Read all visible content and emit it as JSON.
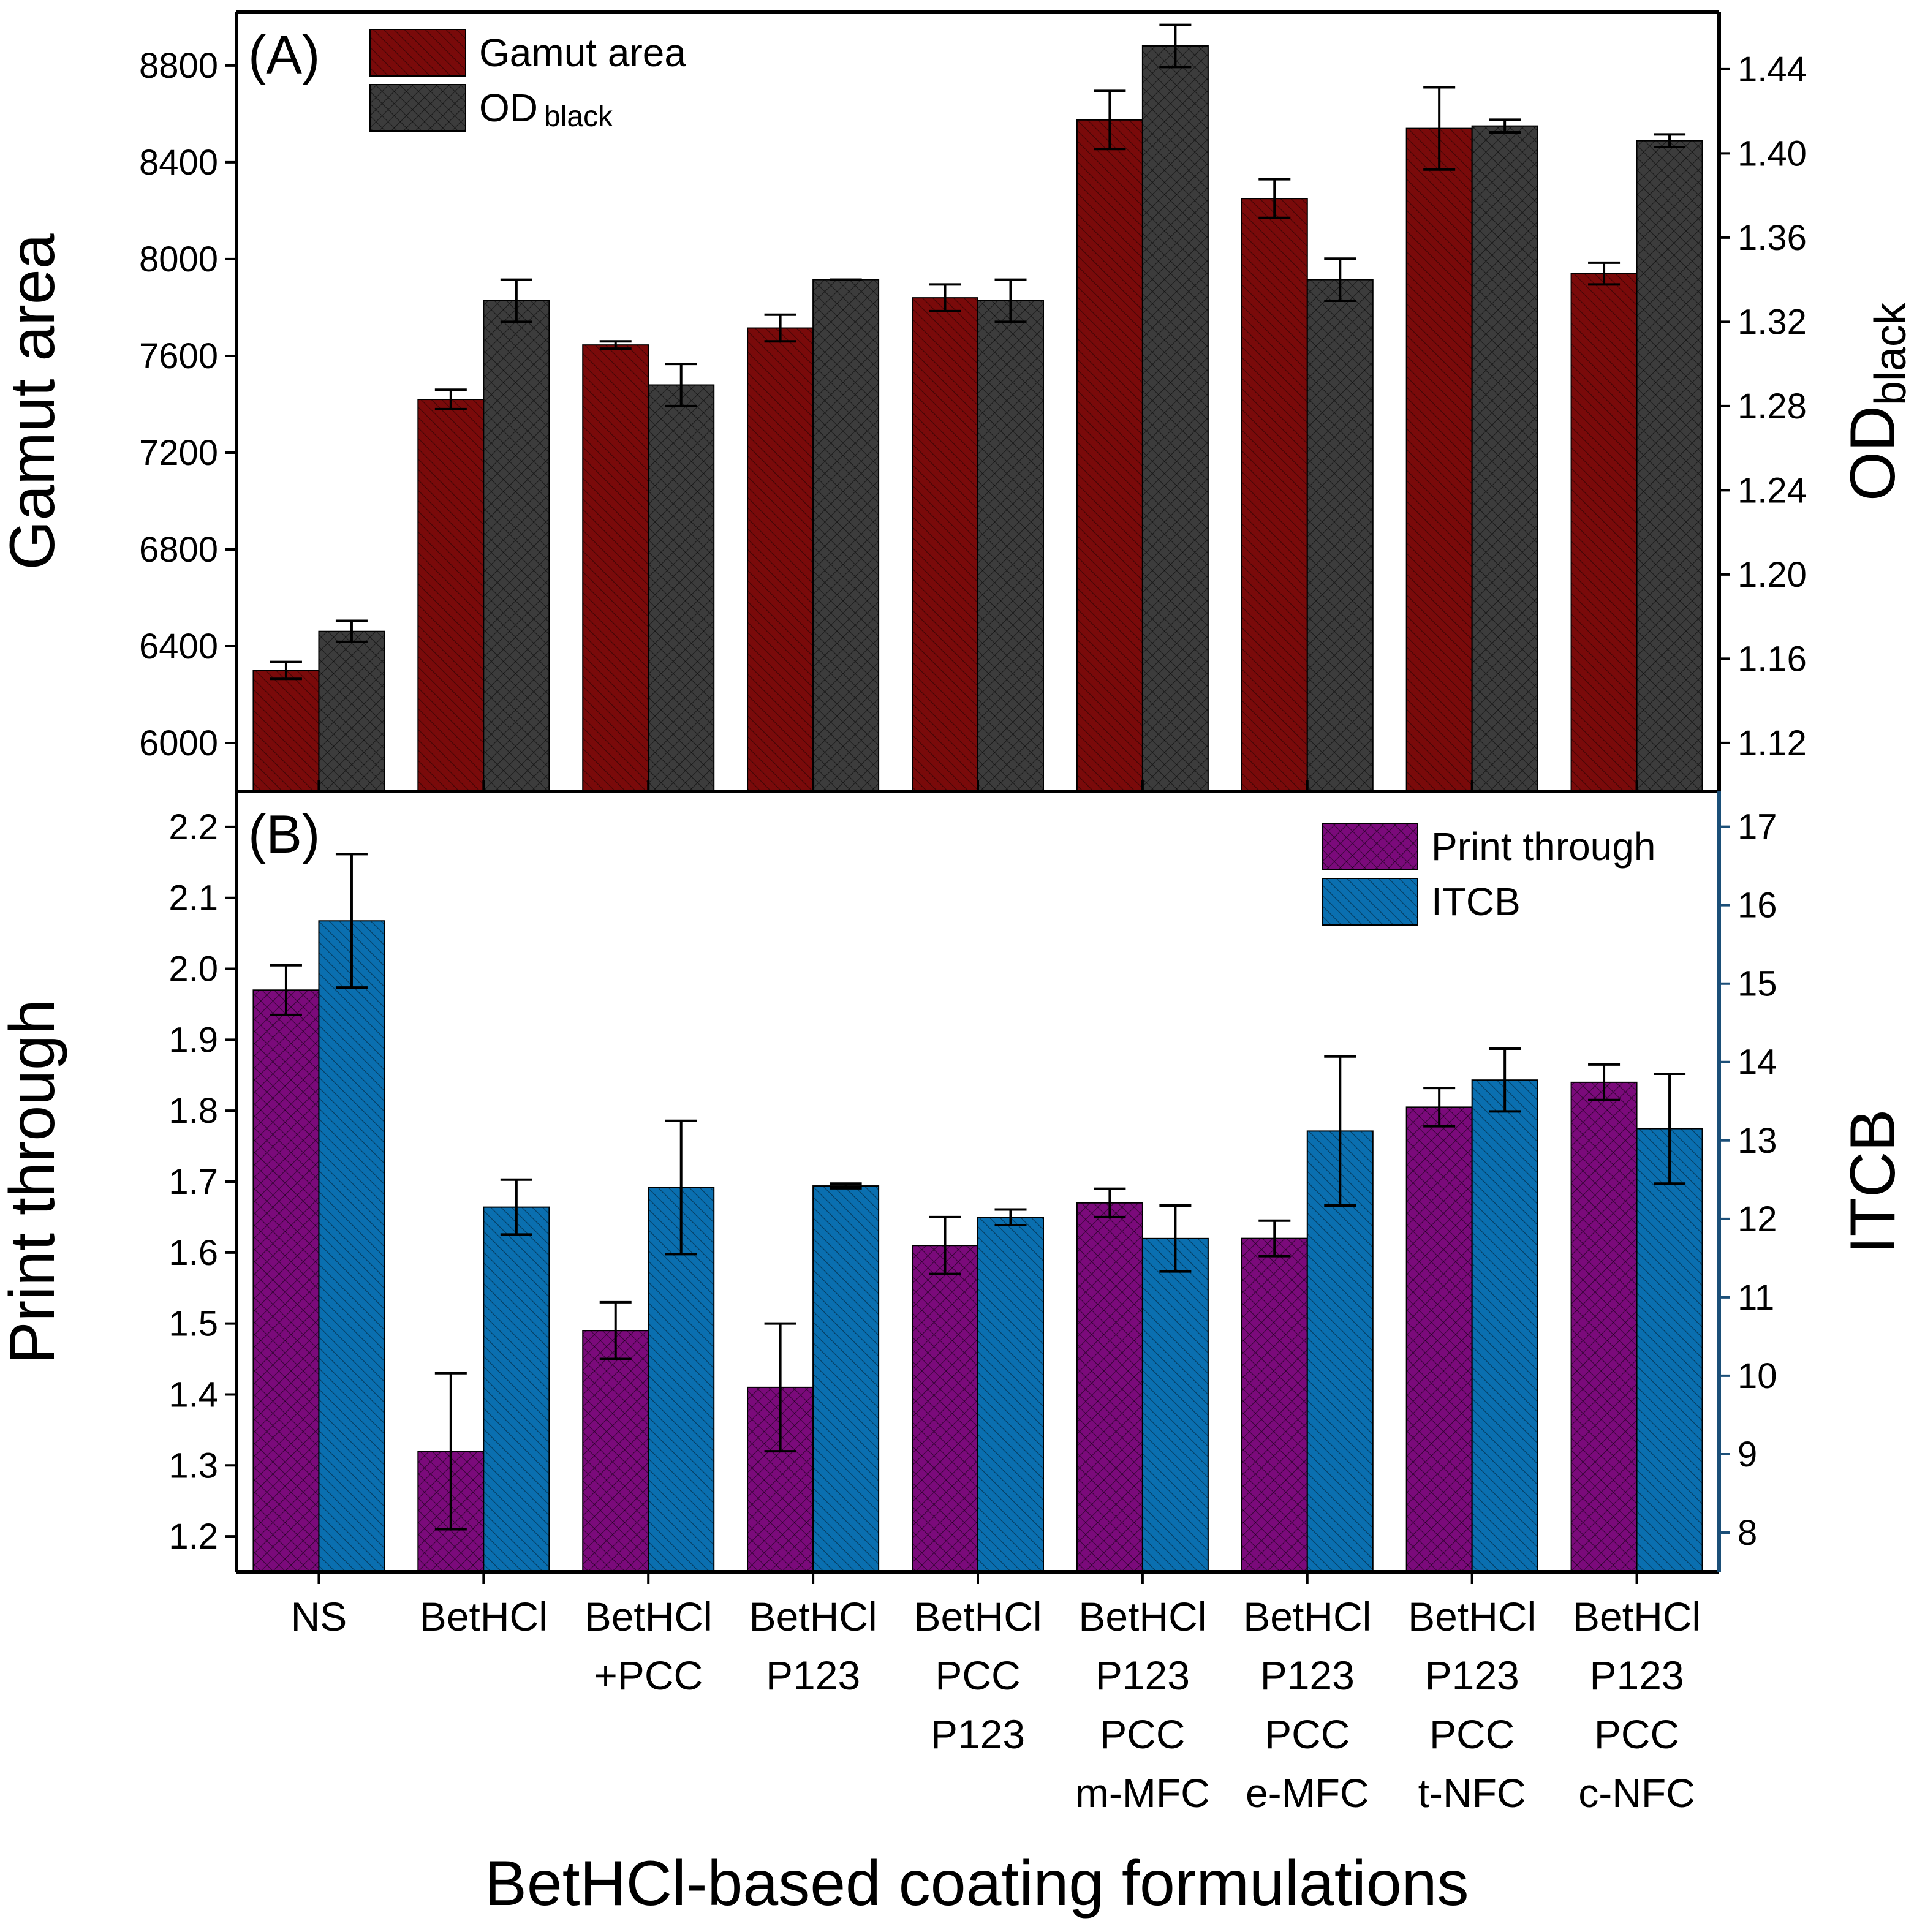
{
  "chart_data": {
    "x_axis": {
      "label": "BetHCl-based coating formulations",
      "categories": [
        [
          "NS"
        ],
        [
          "BetHCl"
        ],
        [
          "BetHCl",
          "+PCC"
        ],
        [
          "BetHCl",
          "P123"
        ],
        [
          "BetHCl",
          "PCC",
          "P123"
        ],
        [
          "BetHCl",
          "P123",
          "PCC",
          "m-MFC"
        ],
        [
          "BetHCl",
          "P123",
          "PCC",
          "e-MFC"
        ],
        [
          "BetHCl",
          "P123",
          "PCC",
          "t-NFC"
        ],
        [
          "BetHCl",
          "P123",
          "PCC",
          "c-NFC"
        ]
      ]
    },
    "panels": [
      {
        "panel_label": "(A)",
        "type": "bar",
        "left_axis": {
          "label": "Gamut area",
          "ylim": [
            5800,
            9020
          ],
          "ticks": [
            "6000",
            "6400",
            "6800",
            "7200",
            "7600",
            "8000",
            "8400",
            "8800"
          ],
          "tick_values": [
            6000,
            6400,
            6800,
            7200,
            7600,
            8000,
            8400,
            8800
          ]
        },
        "right_axis": {
          "label_main": "OD",
          "label_sub": "black",
          "ylim": [
            1.097,
            1.467
          ],
          "ticks": [
            "1.12",
            "1.16",
            "1.20",
            "1.24",
            "1.28",
            "1.32",
            "1.36",
            "1.40",
            "1.44"
          ],
          "tick_values": [
            1.12,
            1.16,
            1.2,
            1.24,
            1.28,
            1.32,
            1.36,
            1.4,
            1.44
          ]
        },
        "series": [
          {
            "name": "Gamut area",
            "axis": "left",
            "color": "#7a0a0a",
            "pattern": "diagonal",
            "values": [
              6300,
              7420,
              7645,
              7715,
              7840,
              8575,
              8250,
              8540,
              7940
            ],
            "errors": [
              35,
              40,
              15,
              55,
              55,
              120,
              80,
              170,
              45
            ]
          },
          {
            "name": "OD",
            "name_sub": "black",
            "axis": "right",
            "color": "#3c3c3c",
            "pattern": "crosshatch",
            "values": [
              1.173,
              1.33,
              1.29,
              1.34,
              1.33,
              1.451,
              1.34,
              1.413,
              1.406
            ],
            "errors": [
              0.005,
              0.01,
              0.01,
              0.0,
              0.01,
              0.01,
              0.01,
              0.003,
              0.003
            ]
          }
        ]
      },
      {
        "panel_label": "(B)",
        "type": "bar",
        "left_axis": {
          "label": "Print through",
          "ylim": [
            1.15,
            2.25
          ],
          "ticks": [
            "1.2",
            "1.3",
            "1.4",
            "1.5",
            "1.6",
            "1.7",
            "1.8",
            "1.9",
            "2.0",
            "2.1",
            "2.2"
          ],
          "tick_values": [
            1.2,
            1.3,
            1.4,
            1.5,
            1.6,
            1.7,
            1.8,
            1.9,
            2.0,
            2.1,
            2.2
          ]
        },
        "right_axis": {
          "label_main": "ITCB",
          "label_sub": "",
          "ylim": [
            7.5,
            17.45
          ],
          "ticks": [
            "8",
            "9",
            "10",
            "11",
            "12",
            "13",
            "14",
            "15",
            "16",
            "17"
          ],
          "tick_values": [
            8,
            9,
            10,
            11,
            12,
            13,
            14,
            15,
            16,
            17
          ]
        },
        "series": [
          {
            "name": "Print through",
            "axis": "left",
            "color": "#7b0a7b",
            "pattern": "crosshatch",
            "values": [
              1.97,
              1.32,
              1.49,
              1.41,
              1.61,
              1.67,
              1.62,
              1.805,
              1.84
            ],
            "errors": [
              0.035,
              0.11,
              0.04,
              0.09,
              0.04,
              0.02,
              0.025,
              0.027,
              0.025
            ]
          },
          {
            "name": "ITCB",
            "axis": "right",
            "color": "#0a6fb0",
            "pattern": "diagonal",
            "values": [
              15.8,
              12.15,
              12.4,
              12.42,
              12.02,
              11.75,
              13.12,
              13.77,
              13.15
            ],
            "errors": [
              0.85,
              0.35,
              0.85,
              0.03,
              0.1,
              0.42,
              0.95,
              0.4,
              0.7
            ]
          }
        ]
      }
    ]
  }
}
